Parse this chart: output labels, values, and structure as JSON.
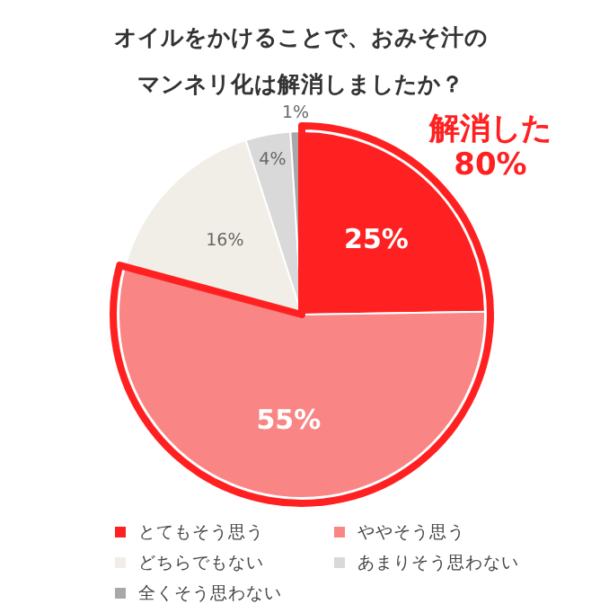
{
  "chart_data": {
    "type": "pie",
    "title": "オイルをかけることで、おみそ汁のマンネリ化は解消しましたか？",
    "categories": [
      "とてもそう思う",
      "ややそう思う",
      "どちらでもない",
      "あまりそう思わない",
      "全くそう思わない"
    ],
    "values": [
      25,
      55,
      16,
      4,
      1
    ],
    "colors": [
      "#ff2121",
      "#f98585",
      "#f1eee7",
      "#d9d9d9",
      "#a8a8a8"
    ],
    "annotations": [
      "解消した 80%"
    ],
    "value_labels": [
      "25%",
      "55%",
      "16%",
      "4%",
      "1%"
    ],
    "legend": "bottom"
  }
}
